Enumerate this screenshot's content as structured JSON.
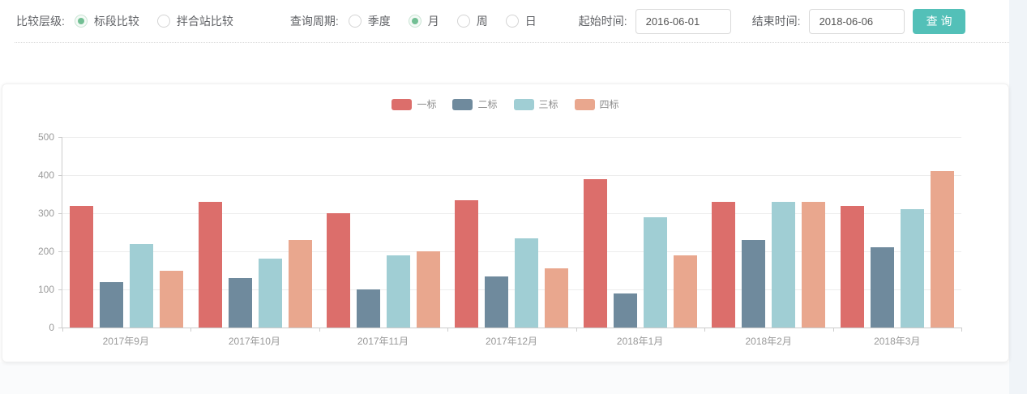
{
  "filters": {
    "compare_level": {
      "label": "比较层级:",
      "options": [
        {
          "label": "标段比较",
          "selected": true
        },
        {
          "label": "拌合站比较",
          "selected": false
        }
      ]
    },
    "query_period": {
      "label": "查询周期:",
      "options": [
        {
          "label": "季度",
          "selected": false
        },
        {
          "label": "月",
          "selected": true
        },
        {
          "label": "周",
          "selected": false
        },
        {
          "label": "日",
          "selected": false
        }
      ]
    },
    "start_time": {
      "label": "起始时间:",
      "value": "2016-06-01"
    },
    "end_time": {
      "label": "结束时间:",
      "value": "2018-06-06"
    },
    "search_button": "查 询"
  },
  "colors": {
    "button_teal": "#53c0b8",
    "radio_green": "#72bf94",
    "axis_line": "#cccccc",
    "grid_line": "#ededed",
    "tick_text": "#999999"
  },
  "chart_data": {
    "type": "bar",
    "categories": [
      "2017年9月",
      "2017年10月",
      "2017年11月",
      "2017年12月",
      "2018年1月",
      "2018年2月",
      "2018年3月"
    ],
    "series": [
      {
        "name": "一标",
        "color": "#dc6e6b",
        "values": [
          320,
          330,
          300,
          335,
          390,
          330,
          320
        ]
      },
      {
        "name": "二标",
        "color": "#6f8a9d",
        "values": [
          120,
          130,
          100,
          135,
          90,
          230,
          210
        ]
      },
      {
        "name": "三标",
        "color": "#a0ced4",
        "values": [
          220,
          180,
          190,
          235,
          290,
          330,
          310
        ]
      },
      {
        "name": "四标",
        "color": "#e9a78e",
        "values": [
          150,
          230,
          200,
          155,
          190,
          330,
          410
        ]
      }
    ],
    "title": "",
    "xlabel": "",
    "ylabel": "",
    "ylim": [
      0,
      500
    ],
    "yticks": [
      0,
      100,
      200,
      300,
      400,
      500
    ],
    "grid": true,
    "legend_position": "top"
  }
}
